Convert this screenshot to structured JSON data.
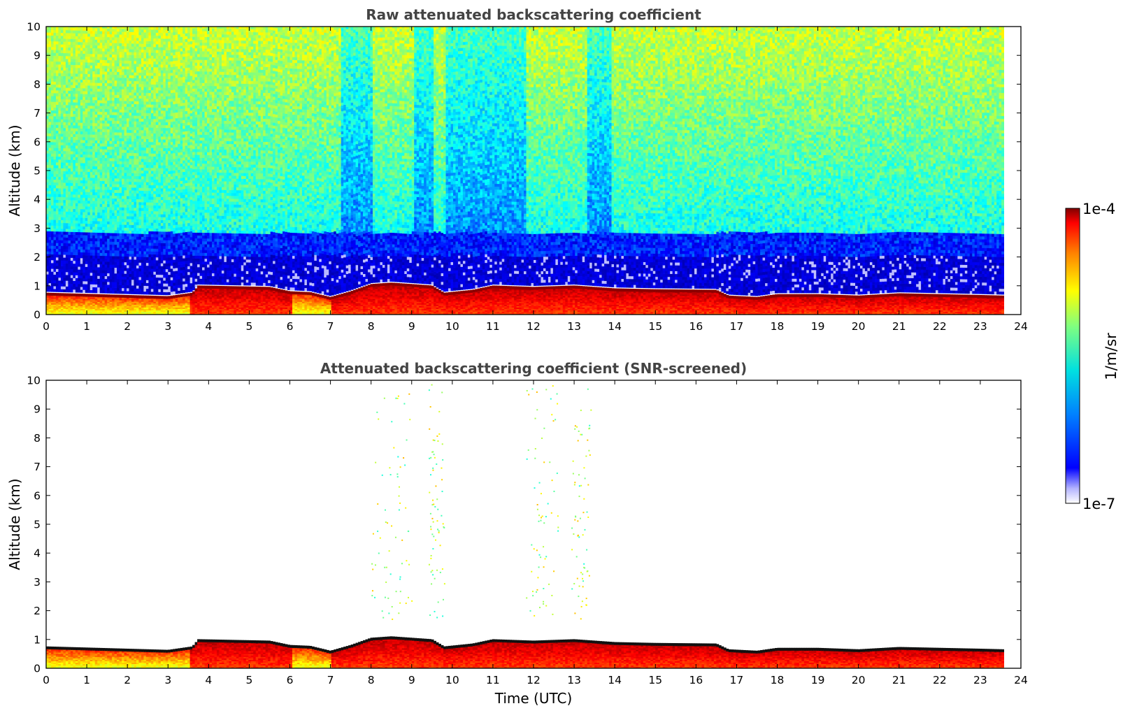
{
  "colors": {
    "text_title": "#444444",
    "frame": "#000000"
  },
  "colorbar": {
    "max_label": "1e-4",
    "min_label": "1e-7",
    "unit_label": "1/m/sr",
    "vmin": 1e-07,
    "vmax": 0.0001,
    "scale": "log",
    "colormap": "jet"
  },
  "chart_data": [
    {
      "type": "heatmap",
      "title": "Raw attenuated backscattering coefficient",
      "xlabel": "",
      "ylabel": "Altitude (km)",
      "xlim": [
        0,
        24
      ],
      "ylim": [
        0,
        10
      ],
      "xticks": [
        0,
        1,
        2,
        3,
        4,
        5,
        6,
        7,
        8,
        9,
        10,
        11,
        12,
        13,
        14,
        15,
        16,
        17,
        18,
        19,
        20,
        21,
        22,
        23,
        24
      ],
      "yticks": [
        0,
        1,
        2,
        3,
        4,
        5,
        6,
        7,
        8,
        9,
        10
      ],
      "data_time_range": [
        0,
        23.55
      ],
      "screened": false,
      "boundary_layer_top_km": {
        "time": [
          0,
          3.0,
          3.6,
          3.75,
          5.5,
          6.0,
          6.5,
          7.0,
          7.5,
          8.0,
          8.5,
          9.0,
          9.5,
          9.8,
          10.5,
          11.0,
          12.0,
          13.0,
          14.0,
          15.0,
          16.5,
          16.8,
          17.5,
          18.0,
          19.0,
          20.0,
          21.0,
          22.0,
          23.0,
          23.55
        ],
        "top": [
          0.7,
          0.58,
          0.7,
          0.95,
          0.9,
          0.75,
          0.72,
          0.55,
          0.75,
          1.0,
          1.05,
          1.0,
          0.95,
          0.7,
          0.8,
          0.95,
          0.9,
          0.95,
          0.85,
          0.82,
          0.8,
          0.6,
          0.55,
          0.65,
          0.65,
          0.6,
          0.68,
          0.65,
          0.62,
          0.6
        ]
      }
    },
    {
      "type": "heatmap",
      "title": "Attenuated backscattering coefficient (SNR-screened)",
      "xlabel": "Time (UTC)",
      "ylabel": "Altitude (km)",
      "xlim": [
        0,
        24
      ],
      "ylim": [
        0,
        10
      ],
      "xticks": [
        0,
        1,
        2,
        3,
        4,
        5,
        6,
        7,
        8,
        9,
        10,
        11,
        12,
        13,
        14,
        15,
        16,
        17,
        18,
        19,
        20,
        21,
        22,
        23,
        24
      ],
      "yticks": [
        0,
        1,
        2,
        3,
        4,
        5,
        6,
        7,
        8,
        9,
        10
      ],
      "data_time_range": [
        0,
        23.55
      ],
      "screened": true,
      "sparse_signal_windows_utc": [
        [
          8.0,
          9.0
        ],
        [
          9.4,
          9.8
        ],
        [
          11.8,
          12.6
        ],
        [
          12.9,
          13.4
        ]
      ]
    }
  ]
}
